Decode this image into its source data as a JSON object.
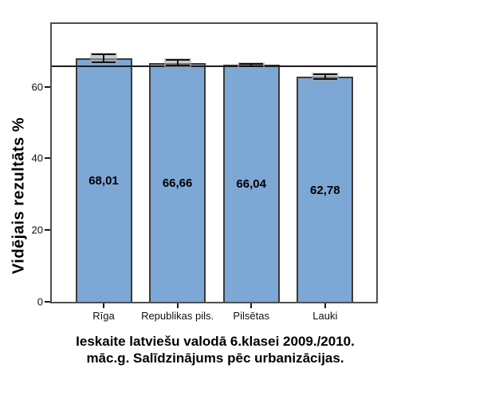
{
  "chart_data": {
    "type": "bar",
    "categories": [
      "Rīga",
      "Republikas pils.",
      "Pilsētas",
      "Lauki"
    ],
    "values": [
      68.01,
      66.66,
      66.04,
      62.78
    ],
    "value_labels": [
      "68,01",
      "66,66",
      "66,04",
      "62,78"
    ],
    "error_bars_half_width": [
      1.1,
      0.75,
      0.35,
      0.6
    ],
    "ylabel": "Vidējais rezultāts %",
    "xlabel": "",
    "yticks": [
      0,
      20,
      40,
      60
    ],
    "ytick_labels": [
      "0",
      "20",
      "40",
      "60"
    ],
    "ylim": [
      0,
      77.5
    ],
    "reference_line": 65.87,
    "grid": false,
    "legend": "none",
    "caption_line1": "Ieskaite latviešu valodā 6.klasei 2009./2010.",
    "caption_line2": "māc.g. Salīdzinājums pēc urbanizācijas.",
    "colors": {
      "bar_fill": "#7da7d4",
      "bar_border": "#3b3b3b",
      "frame": "#4f4f4f",
      "reference_line": "#1c1c1c",
      "error_bar": "#111111",
      "error_bar_backing": "#a8a8a8",
      "text": "#000000",
      "background": "#ffffff"
    }
  }
}
